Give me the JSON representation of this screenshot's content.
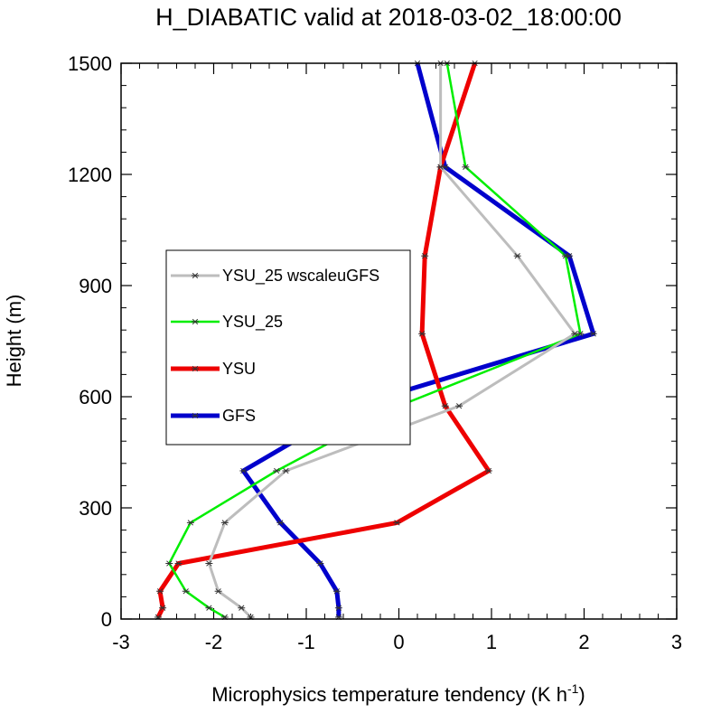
{
  "chart_data": {
    "type": "line",
    "title": "H_DIABATIC valid at 2018-03-02_18:00:00",
    "xlabel": "Microphysics temperature tendency (K h",
    "xlabel_sup": "-1",
    "xlabel_end": ")",
    "ylabel": "Height (m)",
    "xlim": [
      -3,
      3
    ],
    "ylim": [
      0,
      1500
    ],
    "xticks": [
      -3,
      -2,
      -1,
      0,
      1,
      2,
      3
    ],
    "yticks": [
      0,
      300,
      600,
      900,
      1200,
      1500
    ],
    "legend_position": "left-center",
    "series": [
      {
        "name": "YSU_25 wscaleuGFS",
        "color": "#bdbdbd",
        "points": [
          [
            -1.6,
            5
          ],
          [
            -1.7,
            30
          ],
          [
            -1.95,
            75
          ],
          [
            -2.05,
            150
          ],
          [
            -1.88,
            260
          ],
          [
            -1.22,
            400
          ],
          [
            0.65,
            575
          ],
          [
            1.9,
            770
          ],
          [
            1.28,
            980
          ],
          [
            0.45,
            1220
          ],
          [
            0.45,
            1500
          ]
        ]
      },
      {
        "name": "YSU_25",
        "color": "#00ee00",
        "points": [
          [
            -1.88,
            5
          ],
          [
            -2.05,
            30
          ],
          [
            -2.3,
            75
          ],
          [
            -2.48,
            150
          ],
          [
            -2.25,
            260
          ],
          [
            -1.32,
            400
          ],
          [
            0.0,
            575
          ],
          [
            1.96,
            770
          ],
          [
            1.8,
            980
          ],
          [
            0.72,
            1220
          ],
          [
            0.52,
            1500
          ]
        ]
      },
      {
        "name": "YSU",
        "color": "#ee0000",
        "points": [
          [
            -2.6,
            5
          ],
          [
            -2.55,
            30
          ],
          [
            -2.58,
            75
          ],
          [
            -2.38,
            150
          ],
          [
            -0.02,
            260
          ],
          [
            0.97,
            400
          ],
          [
            0.5,
            575
          ],
          [
            0.25,
            770
          ],
          [
            0.28,
            980
          ],
          [
            0.45,
            1220
          ],
          [
            0.82,
            1500
          ]
        ]
      },
      {
        "name": "GFS",
        "color": "#0000cc",
        "points": [
          [
            -0.65,
            5
          ],
          [
            -0.65,
            30
          ],
          [
            -0.67,
            75
          ],
          [
            -0.85,
            150
          ],
          [
            -1.28,
            260
          ],
          [
            -1.68,
            400
          ],
          [
            -0.48,
            575
          ],
          [
            2.1,
            770
          ],
          [
            1.84,
            980
          ],
          [
            0.5,
            1220
          ],
          [
            0.2,
            1500
          ]
        ]
      }
    ]
  }
}
